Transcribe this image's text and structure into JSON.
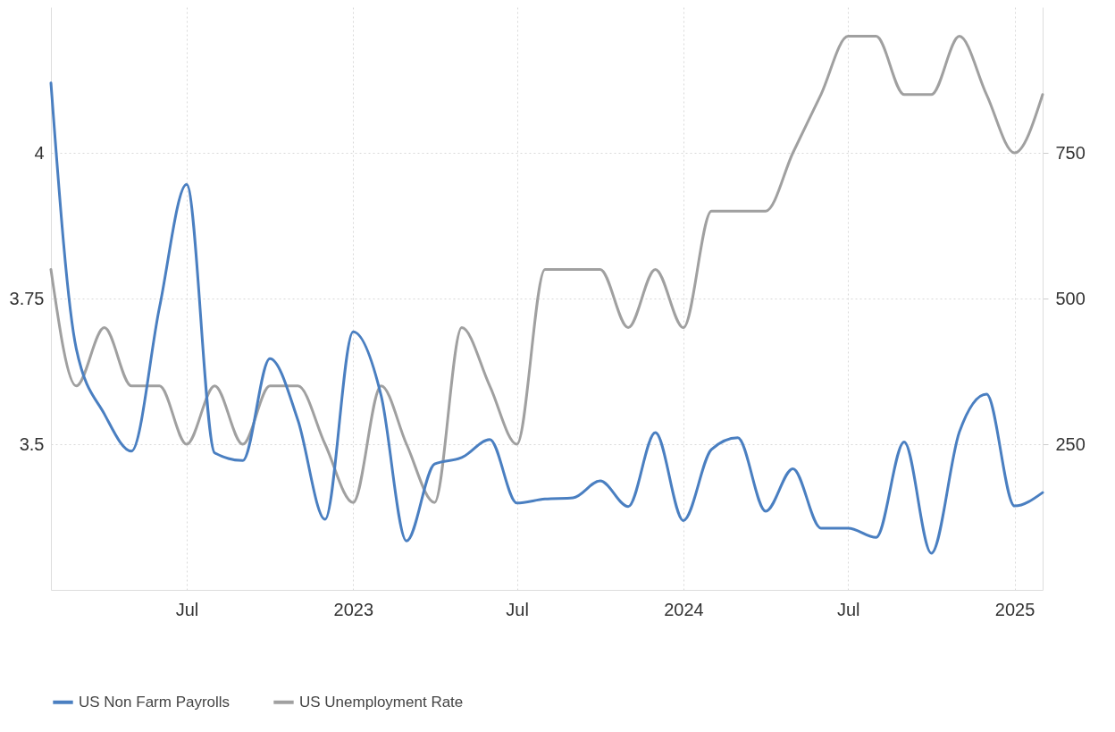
{
  "chart_data": {
    "type": "line",
    "x": [
      "2022-02",
      "2022-03",
      "2022-04",
      "2022-05",
      "2022-06",
      "2022-07",
      "2022-08",
      "2022-09",
      "2022-10",
      "2022-11",
      "2022-12",
      "2023-01",
      "2023-02",
      "2023-03",
      "2023-04",
      "2023-05",
      "2023-06",
      "2023-07",
      "2023-08",
      "2023-09",
      "2023-10",
      "2023-11",
      "2023-12",
      "2024-01",
      "2024-02",
      "2024-03",
      "2024-04",
      "2024-05",
      "2024-06",
      "2024-07",
      "2024-08",
      "2024-09",
      "2024-10",
      "2024-11",
      "2024-12",
      "2025-01",
      "2025-02"
    ],
    "series": [
      {
        "name": "US Non Farm Payrolls",
        "color": "#4a7fc1",
        "axis": "y2",
        "values": [
          870,
          414,
          302,
          238,
          485,
          696,
          235,
          222,
          397,
          291,
          121,
          443,
          333,
          84,
          216,
          227,
          258,
          149,
          156,
          158,
          187,
          143,
          270,
          119,
          241,
          261,
          135,
          208,
          106,
          106,
          90,
          254,
          63,
          271,
          336,
          144,
          167
        ]
      },
      {
        "name": "US Unemployment Rate",
        "color": "#a0a0a0",
        "values": [
          3.8,
          3.6,
          3.7,
          3.6,
          3.6,
          3.5,
          3.6,
          3.5,
          3.6,
          3.6,
          3.5,
          3.4,
          3.6,
          3.5,
          3.4,
          3.7,
          3.6,
          3.5,
          3.8,
          3.8,
          3.8,
          3.7,
          3.8,
          3.7,
          3.9,
          3.9,
          3.9,
          4.0,
          4.1,
          4.2,
          4.2,
          4.1,
          4.1,
          4.2,
          4.1,
          4.0,
          4.1
        ]
      }
    ],
    "xlim": [
      "2022-02-01",
      "2025-02-01"
    ],
    "xticks": [
      {
        "value": "2022-07-01",
        "label": "Jul"
      },
      {
        "value": "2023-01-01",
        "label": "2023"
      },
      {
        "value": "2023-07-01",
        "label": "Jul"
      },
      {
        "value": "2024-01-01",
        "label": "2024"
      },
      {
        "value": "2024-07-01",
        "label": "Jul"
      },
      {
        "value": "2025-01-01",
        "label": "2025"
      }
    ],
    "ylim": [
      3.25,
      4.25
    ],
    "yticks": [
      3.5,
      3.75,
      4
    ],
    "y2lim": [
      0,
      1000
    ],
    "y2ticks": [
      250,
      500,
      750
    ],
    "grid": true,
    "legend": "bottom",
    "line_style": "solid"
  }
}
